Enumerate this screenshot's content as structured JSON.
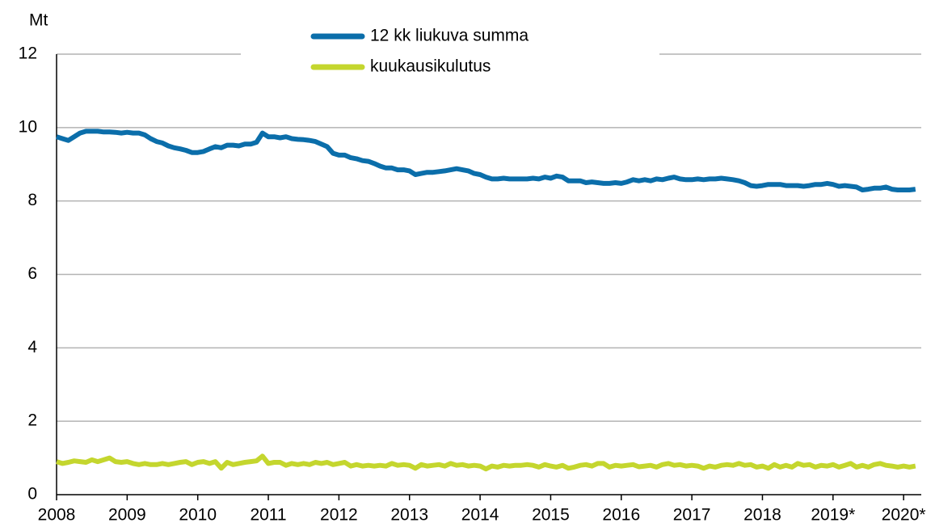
{
  "chart_data": {
    "type": "line",
    "y_label": "Mt",
    "x": [
      2008,
      2008.083,
      2008.167,
      2008.25,
      2008.333,
      2008.417,
      2008.5,
      2008.583,
      2008.667,
      2008.75,
      2008.833,
      2008.917,
      2009,
      2009.083,
      2009.167,
      2009.25,
      2009.333,
      2009.417,
      2009.5,
      2009.583,
      2009.667,
      2009.75,
      2009.833,
      2009.917,
      2010,
      2010.083,
      2010.167,
      2010.25,
      2010.333,
      2010.417,
      2010.5,
      2010.583,
      2010.667,
      2010.75,
      2010.833,
      2010.917,
      2011,
      2011.083,
      2011.167,
      2011.25,
      2011.333,
      2011.417,
      2011.5,
      2011.583,
      2011.667,
      2011.75,
      2011.833,
      2011.917,
      2012,
      2012.083,
      2012.167,
      2012.25,
      2012.333,
      2012.417,
      2012.5,
      2012.583,
      2012.667,
      2012.75,
      2012.833,
      2012.917,
      2013,
      2013.083,
      2013.167,
      2013.25,
      2013.333,
      2013.417,
      2013.5,
      2013.583,
      2013.667,
      2013.75,
      2013.833,
      2013.917,
      2014,
      2014.083,
      2014.167,
      2014.25,
      2014.333,
      2014.417,
      2014.5,
      2014.583,
      2014.667,
      2014.75,
      2014.833,
      2014.917,
      2015,
      2015.083,
      2015.167,
      2015.25,
      2015.333,
      2015.417,
      2015.5,
      2015.583,
      2015.667,
      2015.75,
      2015.833,
      2015.917,
      2016,
      2016.083,
      2016.167,
      2016.25,
      2016.333,
      2016.417,
      2016.5,
      2016.583,
      2016.667,
      2016.75,
      2016.833,
      2016.917,
      2017,
      2017.083,
      2017.167,
      2017.25,
      2017.333,
      2017.417,
      2017.5,
      2017.583,
      2017.667,
      2017.75,
      2017.833,
      2017.917,
      2018,
      2018.083,
      2018.167,
      2018.25,
      2018.333,
      2018.417,
      2018.5,
      2018.583,
      2018.667,
      2018.75,
      2018.833,
      2018.917,
      2019,
      2019.083,
      2019.167,
      2019.25,
      2019.333,
      2019.417,
      2019.5,
      2019.583,
      2019.667,
      2019.75,
      2019.833,
      2019.917,
      2020,
      2020.083,
      2020.167
    ],
    "series": [
      {
        "name": "12 kk liukuva summa",
        "color": "#0b6eaa",
        "values": [
          9.75,
          9.7,
          9.65,
          9.75,
          9.85,
          9.9,
          9.9,
          9.9,
          9.88,
          9.88,
          9.87,
          9.85,
          9.87,
          9.85,
          9.85,
          9.8,
          9.7,
          9.62,
          9.58,
          9.5,
          9.45,
          9.42,
          9.38,
          9.32,
          9.32,
          9.35,
          9.42,
          9.48,
          9.45,
          9.52,
          9.52,
          9.5,
          9.55,
          9.55,
          9.6,
          9.85,
          9.75,
          9.75,
          9.72,
          9.75,
          9.7,
          9.68,
          9.67,
          9.65,
          9.62,
          9.55,
          9.48,
          9.3,
          9.25,
          9.25,
          9.18,
          9.15,
          9.1,
          9.08,
          9.02,
          8.95,
          8.9,
          8.9,
          8.85,
          8.85,
          8.82,
          8.72,
          8.75,
          8.78,
          8.78,
          8.8,
          8.82,
          8.85,
          8.88,
          8.85,
          8.82,
          8.75,
          8.72,
          8.65,
          8.6,
          8.6,
          8.62,
          8.6,
          8.6,
          8.6,
          8.6,
          8.62,
          8.6,
          8.65,
          8.62,
          8.68,
          8.65,
          8.55,
          8.55,
          8.55,
          8.5,
          8.52,
          8.5,
          8.48,
          8.48,
          8.5,
          8.48,
          8.52,
          8.58,
          8.55,
          8.58,
          8.55,
          8.6,
          8.58,
          8.62,
          8.65,
          8.6,
          8.58,
          8.58,
          8.6,
          8.58,
          8.6,
          8.6,
          8.62,
          8.6,
          8.58,
          8.55,
          8.5,
          8.42,
          8.4,
          8.42,
          8.45,
          8.45,
          8.45,
          8.42,
          8.42,
          8.42,
          8.4,
          8.42,
          8.45,
          8.45,
          8.48,
          8.45,
          8.4,
          8.42,
          8.4,
          8.38,
          8.3,
          8.32,
          8.35,
          8.35,
          8.38,
          8.32,
          8.3,
          8.3,
          8.3,
          8.32
        ]
      },
      {
        "name": "kuukausikulutus",
        "color": "#c4d62e",
        "values": [
          0.9,
          0.85,
          0.88,
          0.92,
          0.9,
          0.88,
          0.95,
          0.9,
          0.95,
          1.0,
          0.9,
          0.88,
          0.9,
          0.85,
          0.82,
          0.85,
          0.82,
          0.82,
          0.85,
          0.82,
          0.85,
          0.88,
          0.9,
          0.82,
          0.88,
          0.9,
          0.85,
          0.9,
          0.72,
          0.88,
          0.82,
          0.85,
          0.88,
          0.9,
          0.92,
          1.05,
          0.85,
          0.88,
          0.88,
          0.8,
          0.85,
          0.82,
          0.85,
          0.82,
          0.88,
          0.85,
          0.88,
          0.82,
          0.85,
          0.88,
          0.78,
          0.82,
          0.78,
          0.8,
          0.78,
          0.8,
          0.78,
          0.85,
          0.8,
          0.82,
          0.8,
          0.72,
          0.82,
          0.78,
          0.8,
          0.82,
          0.78,
          0.85,
          0.8,
          0.82,
          0.78,
          0.8,
          0.78,
          0.7,
          0.78,
          0.75,
          0.8,
          0.78,
          0.8,
          0.8,
          0.82,
          0.8,
          0.75,
          0.82,
          0.78,
          0.75,
          0.8,
          0.72,
          0.75,
          0.8,
          0.82,
          0.78,
          0.85,
          0.85,
          0.75,
          0.8,
          0.78,
          0.8,
          0.82,
          0.76,
          0.78,
          0.8,
          0.75,
          0.82,
          0.85,
          0.8,
          0.82,
          0.78,
          0.8,
          0.78,
          0.72,
          0.78,
          0.75,
          0.8,
          0.82,
          0.8,
          0.85,
          0.8,
          0.82,
          0.75,
          0.78,
          0.72,
          0.82,
          0.75,
          0.8,
          0.75,
          0.85,
          0.8,
          0.82,
          0.75,
          0.8,
          0.78,
          0.82,
          0.75,
          0.8,
          0.85,
          0.75,
          0.8,
          0.75,
          0.82,
          0.85,
          0.8,
          0.78,
          0.75,
          0.78,
          0.75,
          0.78
        ]
      }
    ],
    "xlim": [
      2008,
      2020.25
    ],
    "xticks": [
      2008,
      2009,
      2010,
      2011,
      2012,
      2013,
      2014,
      2015,
      2016,
      2017,
      2018,
      {
        "value": 2019,
        "label": "2019*"
      },
      {
        "value": 2020,
        "label": "2020*"
      }
    ],
    "ylim": [
      0,
      12
    ],
    "yticks": [
      0,
      2,
      4,
      6,
      8,
      10,
      12
    ],
    "grid": true,
    "legend": "top"
  }
}
